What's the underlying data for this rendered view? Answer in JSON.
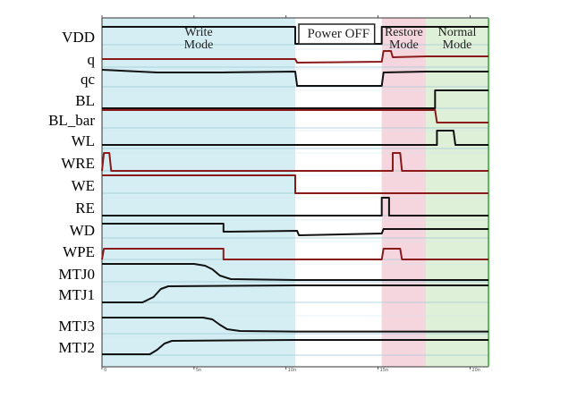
{
  "chart_data": {
    "type": "line",
    "title": "",
    "xlabel": "",
    "ylabel": "",
    "time_ticks": [
      "0",
      "5n",
      "10n",
      "15n",
      "20n"
    ],
    "x_range": [
      0,
      21
    ],
    "modes": [
      {
        "name": "Write Mode",
        "lines": [
          "Write",
          "Mode"
        ],
        "start": 0,
        "end": 10.5,
        "color": "#d4eef4"
      },
      {
        "name": "Power OFF",
        "lines": [
          "Power OFF"
        ],
        "start": 10.5,
        "end": 15.2,
        "color": "#ffffff"
      },
      {
        "name": "Restore Mode",
        "lines": [
          "Restore",
          "Mode"
        ],
        "start": 15.2,
        "end": 17.6,
        "color": "#f6d6de"
      },
      {
        "name": "Normal Mode",
        "lines": [
          "Normal",
          "Mode"
        ],
        "start": 17.6,
        "end": 21,
        "color": "#dff0d8"
      }
    ],
    "signals": [
      {
        "name": "VDD",
        "color": "#111111",
        "points": [
          [
            0,
            1
          ],
          [
            10.5,
            1
          ],
          [
            10.5,
            0.05
          ],
          [
            15.2,
            0.05
          ],
          [
            15.2,
            1
          ],
          [
            21,
            1
          ]
        ]
      },
      {
        "name": "q",
        "color": "#8b1a1a",
        "points": [
          [
            0,
            0.45
          ],
          [
            10.5,
            0.45
          ],
          [
            10.6,
            0.25
          ],
          [
            15.2,
            0.3
          ],
          [
            15.3,
            0.9
          ],
          [
            15.7,
            0.9
          ],
          [
            15.8,
            0.55
          ],
          [
            17.6,
            0.6
          ],
          [
            21,
            0.6
          ]
        ]
      },
      {
        "name": "qc",
        "color": "#111111",
        "points": [
          [
            0,
            0.95
          ],
          [
            3,
            0.8
          ],
          [
            6.5,
            0.8
          ],
          [
            10.5,
            0.85
          ],
          [
            10.6,
            0.05
          ],
          [
            15.2,
            0.05
          ],
          [
            15.3,
            0.8
          ],
          [
            17.6,
            0.85
          ],
          [
            21,
            0.85
          ]
        ]
      },
      {
        "name": "BL",
        "color": "#111111",
        "points": [
          [
            0,
            0
          ],
          [
            18.1,
            0
          ],
          [
            18.1,
            1
          ],
          [
            21,
            1
          ]
        ]
      },
      {
        "name": "BL_bar",
        "color": "#8b1a1a",
        "points": [
          [
            0,
            1
          ],
          [
            18.1,
            1
          ],
          [
            18.2,
            0.3
          ],
          [
            21,
            0.3
          ]
        ]
      },
      {
        "name": "WL",
        "color": "#111111",
        "points": [
          [
            0,
            0.2
          ],
          [
            18.2,
            0.2
          ],
          [
            18.2,
            1
          ],
          [
            19.1,
            1
          ],
          [
            19.2,
            0.2
          ],
          [
            21,
            0.2
          ]
        ]
      },
      {
        "name": "WRE",
        "color": "#8b1a1a",
        "points": [
          [
            0,
            0
          ],
          [
            0.1,
            1
          ],
          [
            0.4,
            1
          ],
          [
            0.5,
            0
          ],
          [
            15.8,
            0
          ],
          [
            15.8,
            1
          ],
          [
            16.2,
            1
          ],
          [
            16.3,
            0
          ],
          [
            21,
            0
          ]
        ]
      },
      {
        "name": "WE",
        "color": "#8b1a1a",
        "points": [
          [
            0,
            1
          ],
          [
            10.5,
            1
          ],
          [
            10.5,
            0
          ],
          [
            21,
            0
          ]
        ]
      },
      {
        "name": "RE",
        "color": "#111111",
        "points": [
          [
            0,
            0
          ],
          [
            15.2,
            0
          ],
          [
            15.2,
            1
          ],
          [
            15.6,
            1
          ],
          [
            15.6,
            0
          ],
          [
            21,
            0
          ]
        ]
      },
      {
        "name": "WD",
        "color": "#111111",
        "points": [
          [
            0,
            0.8
          ],
          [
            6.6,
            0.8
          ],
          [
            6.6,
            0.35
          ],
          [
            10.6,
            0.4
          ],
          [
            10.7,
            0.15
          ],
          [
            15.2,
            0.25
          ],
          [
            15.3,
            0.5
          ],
          [
            21,
            0.5
          ]
        ]
      },
      {
        "name": "WPE",
        "color": "#8b1a1a",
        "points": [
          [
            0,
            0
          ],
          [
            0.1,
            0.6
          ],
          [
            6.6,
            0.6
          ],
          [
            6.6,
            0
          ],
          [
            15.2,
            0
          ],
          [
            15.3,
            0.6
          ],
          [
            16.2,
            0.6
          ],
          [
            16.3,
            0
          ],
          [
            21,
            0
          ]
        ]
      },
      {
        "name": "MTJ0",
        "color": "#111111",
        "points": [
          [
            0,
            1
          ],
          [
            5,
            1
          ],
          [
            5.6,
            0.9
          ],
          [
            6.0,
            0.7
          ],
          [
            6.4,
            0.35
          ],
          [
            7,
            0.15
          ],
          [
            10.5,
            0.1
          ],
          [
            21,
            0.1
          ]
        ]
      },
      {
        "name": "MTJ1",
        "color": "#111111",
        "points": [
          [
            0,
            0
          ],
          [
            2.2,
            0
          ],
          [
            2.8,
            0.3
          ],
          [
            3.2,
            0.75
          ],
          [
            3.6,
            0.9
          ],
          [
            10.5,
            0.95
          ],
          [
            21,
            0.95
          ]
        ]
      },
      {
        "name": "MTJ3",
        "color": "#111111",
        "points": [
          [
            0,
            0.9
          ],
          [
            5.5,
            0.9
          ],
          [
            6.0,
            0.8
          ],
          [
            6.4,
            0.5
          ],
          [
            6.8,
            0.25
          ],
          [
            7.5,
            0.15
          ],
          [
            10.5,
            0.12
          ],
          [
            21,
            0.12
          ]
        ]
      },
      {
        "name": "MTJ2",
        "color": "#111111",
        "points": [
          [
            0,
            0.05
          ],
          [
            2.6,
            0.05
          ],
          [
            3.0,
            0.3
          ],
          [
            3.4,
            0.65
          ],
          [
            3.8,
            0.8
          ],
          [
            10.5,
            0.85
          ],
          [
            21,
            0.85
          ]
        ]
      }
    ]
  }
}
